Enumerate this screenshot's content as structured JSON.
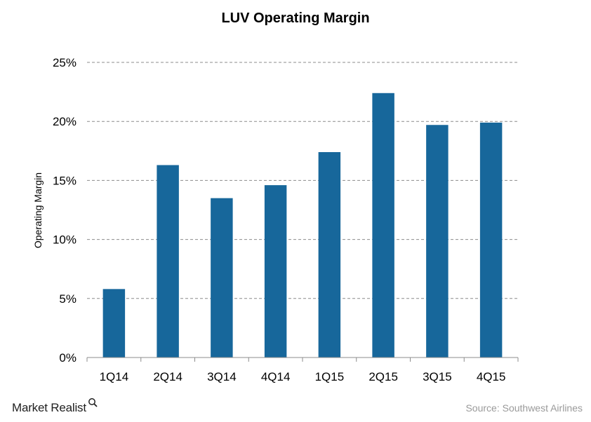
{
  "chart_data": {
    "type": "bar",
    "title": "LUV Operating  Margin",
    "xlabel": "",
    "ylabel": "Operating Margin",
    "categories": [
      "1Q14",
      "2Q14",
      "3Q14",
      "4Q14",
      "1Q15",
      "2Q15",
      "3Q15",
      "4Q15"
    ],
    "values": [
      5.8,
      16.3,
      13.5,
      14.6,
      17.4,
      22.4,
      19.7,
      19.9
    ],
    "unit": "%",
    "ylim": [
      0,
      25
    ],
    "yticks": [
      0,
      5,
      10,
      15,
      20,
      25
    ],
    "ytick_labels": [
      "0%",
      "5%",
      "10%",
      "15%",
      "20%",
      "25%"
    ],
    "grid": true,
    "bar_color": "#17679b",
    "grid_color": "#8c8c8c"
  },
  "footer": {
    "brand": "Market Realist",
    "source": "Source: Southwest Airlines"
  }
}
